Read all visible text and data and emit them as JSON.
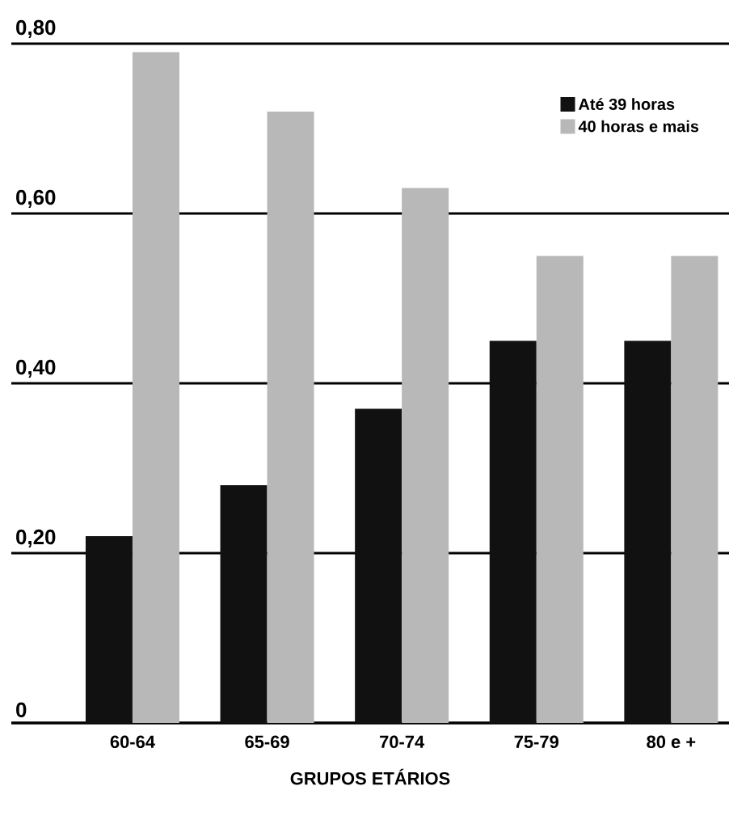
{
  "chart_data": {
    "type": "bar",
    "xlabel": "GRUPOS ETÁRIOS",
    "categories": [
      "60-64",
      "65-69",
      "70-74",
      "75-79",
      "80 e +"
    ],
    "series": [
      {
        "name": "Até 39 horas",
        "color": "#111111",
        "values": [
          0.22,
          0.28,
          0.37,
          0.45,
          0.45
        ]
      },
      {
        "name": "40 horas e mais",
        "color": "#b8b8b8",
        "values": [
          0.79,
          0.72,
          0.63,
          0.55,
          0.55
        ]
      }
    ],
    "ylim": [
      0,
      0.8
    ],
    "yticks": [
      {
        "value": 0,
        "label": "0"
      },
      {
        "value": 0.2,
        "label": "0,20"
      },
      {
        "value": 0.4,
        "label": "0,40"
      },
      {
        "value": 0.6,
        "label": "0,60"
      },
      {
        "value": 0.8,
        "label": "0,80"
      }
    ],
    "grid": "y",
    "legend": "top right"
  }
}
